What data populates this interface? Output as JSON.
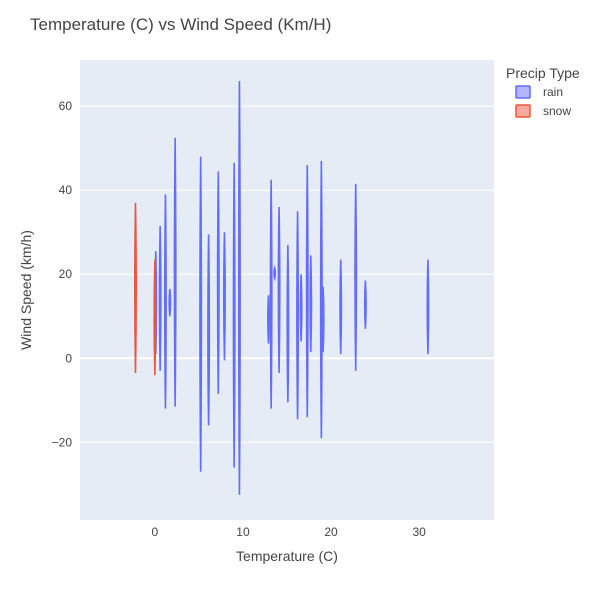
{
  "chart_data": {
    "type": "violin",
    "title": "Temperature (C) vs Wind Speed (Km/H)",
    "xlabel": "Temperature (C)",
    "ylabel": "Wind Speed (km/h)",
    "xlim": [
      -8.5,
      38.5
    ],
    "ylim": [
      -38.5,
      71
    ],
    "x_ticks": [
      0,
      10,
      20,
      30
    ],
    "y_ticks": [
      -20,
      0,
      20,
      40,
      60
    ],
    "grid": true,
    "legend": {
      "title": "Precip Type",
      "placement": "top-right",
      "entries": [
        "rain",
        "snow"
      ]
    },
    "colors": {
      "rain": "#636efa",
      "snow": "#ef553b",
      "plot_bg": "#e5ecf6",
      "grid": "#ffffff"
    },
    "series": [
      {
        "name": "rain",
        "violins": [
          {
            "x": 0.1,
            "ymin": 1,
            "ymax": 25.5
          },
          {
            "x": 0.6,
            "ymin": -3,
            "ymax": 31.5
          },
          {
            "x": 1.2,
            "ymin": -12,
            "ymax": 39
          },
          {
            "x": 1.7,
            "ymin": 10,
            "ymax": 16.5
          },
          {
            "x": 2.3,
            "ymin": -11.5,
            "ymax": 52.5
          },
          {
            "x": 5.2,
            "ymin": -27,
            "ymax": 48
          },
          {
            "x": 6.1,
            "ymin": -16,
            "ymax": 29.5
          },
          {
            "x": 7.2,
            "ymin": -8.5,
            "ymax": 44.5
          },
          {
            "x": 7.9,
            "ymin": -0.5,
            "ymax": 30
          },
          {
            "x": 9.0,
            "ymin": -26,
            "ymax": 46.5
          },
          {
            "x": 9.6,
            "ymin": -32.5,
            "ymax": 66
          },
          {
            "x": 12.9,
            "ymin": 3.5,
            "ymax": 15
          },
          {
            "x": 13.2,
            "ymin": -12,
            "ymax": 42.5
          },
          {
            "x": 13.6,
            "ymin": 19,
            "ymax": 21.5
          },
          {
            "x": 14.1,
            "ymin": -3.5,
            "ymax": 36
          },
          {
            "x": 15.1,
            "ymin": -10.5,
            "ymax": 27
          },
          {
            "x": 16.2,
            "ymin": -14.5,
            "ymax": 35
          },
          {
            "x": 16.6,
            "ymin": 4,
            "ymax": 20
          },
          {
            "x": 17.3,
            "ymin": -14,
            "ymax": 46
          },
          {
            "x": 17.7,
            "ymin": 1.5,
            "ymax": 24.5
          },
          {
            "x": 18.9,
            "ymin": -19,
            "ymax": 47
          },
          {
            "x": 19.1,
            "ymin": 1.5,
            "ymax": 17
          },
          {
            "x": 21.1,
            "ymin": 1,
            "ymax": 23.5
          },
          {
            "x": 22.8,
            "ymin": -3,
            "ymax": 41.5
          },
          {
            "x": 23.9,
            "ymin": 7,
            "ymax": 18.5
          },
          {
            "x": 31.0,
            "ymin": 1,
            "ymax": 23.5
          }
        ]
      },
      {
        "name": "snow",
        "violins": [
          {
            "x": -2.2,
            "ymin": -3.5,
            "ymax": 37
          },
          {
            "x": 0.0,
            "ymin": -4,
            "ymax": 23.5
          }
        ]
      }
    ]
  }
}
